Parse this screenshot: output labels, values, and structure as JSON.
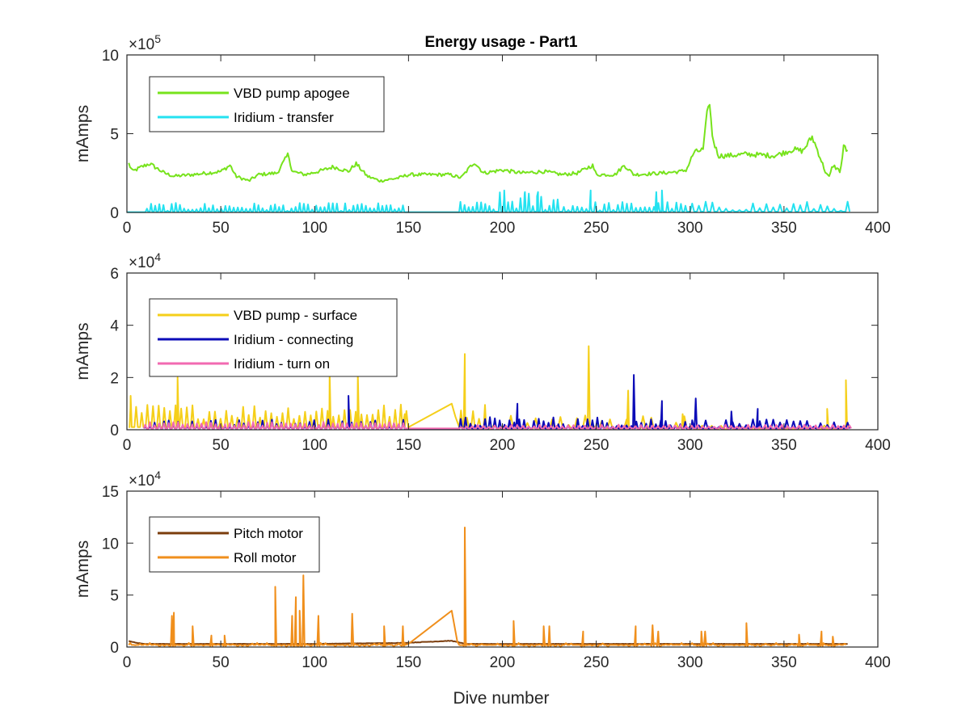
{
  "title": "Energy usage - Part1",
  "xlabel": "Dive number",
  "chart_data": [
    {
      "type": "line",
      "ylabel": "mAmps",
      "exponent_label": "×10",
      "exponent_power": "5",
      "scale": 100000,
      "xlim": [
        0,
        400
      ],
      "ylim": [
        0,
        10
      ],
      "xticks": [
        "0",
        "50",
        "100",
        "150",
        "200",
        "250",
        "300",
        "350",
        "400"
      ],
      "yticks": [
        "0",
        "5",
        "10"
      ],
      "legend_placement": "top-left",
      "series": [
        {
          "name": "VBD pump apogee",
          "color": "#77e31c",
          "style": "noisy",
          "anchors": [
            [
              1,
              3.1
            ],
            [
              3,
              2.6
            ],
            [
              8,
              2.9
            ],
            [
              12,
              3.1
            ],
            [
              20,
              2.5
            ],
            [
              25,
              2.3
            ],
            [
              35,
              2.4
            ],
            [
              50,
              2.6
            ],
            [
              55,
              3.0
            ],
            [
              58,
              2.3
            ],
            [
              65,
              2.0
            ],
            [
              70,
              2.4
            ],
            [
              80,
              2.5
            ],
            [
              86,
              3.7
            ],
            [
              88,
              2.6
            ],
            [
              95,
              2.4
            ],
            [
              105,
              2.7
            ],
            [
              110,
              2.9
            ],
            [
              118,
              2.6
            ],
            [
              122,
              3.1
            ],
            [
              128,
              2.3
            ],
            [
              135,
              2.0
            ],
            [
              145,
              2.2
            ],
            [
              150,
              2.4
            ],
            [
              165,
              2.4
            ],
            [
              172,
              2.4
            ],
            [
              178,
              2.2
            ],
            [
              185,
              3.2
            ],
            [
              190,
              2.5
            ],
            [
              195,
              2.6
            ],
            [
              200,
              2.7
            ],
            [
              210,
              2.5
            ],
            [
              222,
              2.6
            ],
            [
              232,
              2.4
            ],
            [
              240,
              2.5
            ],
            [
              248,
              3.0
            ],
            [
              250,
              2.4
            ],
            [
              260,
              2.4
            ],
            [
              265,
              3.0
            ],
            [
              270,
              2.4
            ],
            [
              285,
              2.5
            ],
            [
              295,
              2.6
            ],
            [
              298,
              2.7
            ],
            [
              302,
              3.8
            ],
            [
              307,
              4.0
            ],
            [
              310,
              7.3
            ],
            [
              312,
              4.7
            ],
            [
              315,
              3.6
            ],
            [
              320,
              3.6
            ],
            [
              330,
              3.7
            ],
            [
              345,
              3.6
            ],
            [
              355,
              4.0
            ],
            [
              360,
              3.9
            ],
            [
              365,
              4.8
            ],
            [
              368,
              3.9
            ],
            [
              372,
              2.6
            ],
            [
              374,
              2.2
            ],
            [
              376,
              3.0
            ],
            [
              380,
              2.6
            ],
            [
              382,
              4.3
            ],
            [
              384,
              3.8
            ]
          ]
        },
        {
          "name": "Iridium - transfer",
          "color": "#24e2f0",
          "style": "spikes",
          "segments": [
            {
              "from": 10,
              "to": 148,
              "step": 2.2,
              "low": 0.1,
              "high": 0.6,
              "base": 0.05
            },
            {
              "from": 177,
              "to": 195,
              "step": 2.2,
              "low": 0.1,
              "high": 0.7,
              "base": 0.05
            },
            {
              "from": 198,
              "to": 230,
              "step": 2.2,
              "low": 0.1,
              "high": 1.3,
              "base": 0.05
            },
            {
              "from": 232,
              "to": 298,
              "step": 2.4,
              "low": 0.1,
              "high": 0.7,
              "base": 0.05
            },
            {
              "from": 300,
              "to": 384,
              "step": 3.6,
              "low": 0.1,
              "high": 0.7,
              "base": 0.05
            }
          ],
          "peaks": [
            [
              201,
              1.4
            ],
            [
              212,
              1.3
            ],
            [
              219,
              1.3
            ],
            [
              247,
              1.4
            ],
            [
              282,
              1.3
            ],
            [
              285,
              1.4
            ]
          ],
          "flat": [
            [
              0,
              0.02
            ],
            [
              10,
              0.02
            ],
            [
              148,
              0.02
            ],
            [
              177,
              0.02
            ]
          ]
        }
      ]
    },
    {
      "type": "line",
      "ylabel": "mAmps",
      "exponent_label": "×10",
      "exponent_power": "4",
      "scale": 10000,
      "xlim": [
        0,
        400
      ],
      "ylim": [
        0,
        6
      ],
      "xticks": [
        "0",
        "50",
        "100",
        "150",
        "200",
        "250",
        "300",
        "350",
        "400"
      ],
      "yticks": [
        "0",
        "2",
        "4",
        "6"
      ],
      "legend_placement": "top-left",
      "series": [
        {
          "name": "VBD pump - surface",
          "color": "#f5cf1a",
          "style": "spikes",
          "segments": [
            {
              "from": 1,
              "to": 148,
              "step": 3.0,
              "low": 0.4,
              "high": 1.0,
              "base": 0.1
            },
            {
              "from": 177,
              "to": 190,
              "step": 3.2,
              "low": 0.4,
              "high": 1.0,
              "base": 0.1
            },
            {
              "from": 190,
              "to": 300,
              "step": 4.4,
              "low": 0.1,
              "high": 0.6,
              "base": 0.05
            },
            {
              "from": 300,
              "to": 384,
              "step": 5.0,
              "low": 0.05,
              "high": 0.2,
              "base": 0.02
            }
          ],
          "peaks": [
            [
              2,
              1.3
            ],
            [
              27,
              2.0
            ],
            [
              108,
              2.2
            ],
            [
              123,
              2.1
            ],
            [
              180,
              2.9
            ],
            [
              246,
              3.2
            ],
            [
              267,
              1.5
            ],
            [
              296,
              0.6
            ],
            [
              373,
              0.8
            ],
            [
              383,
              1.9
            ]
          ],
          "bridge": [
            [
              148,
              0.6
            ],
            [
              150,
              0.1
            ],
            [
              173,
              1.0
            ],
            [
              175,
              0.5
            ]
          ]
        },
        {
          "name": "Iridium - connecting",
          "color": "#0c0cb8",
          "style": "spikes",
          "segments": [
            {
              "from": 9,
              "to": 148,
              "step": 2.5,
              "low": 0.1,
              "high": 0.4,
              "base": 0.05
            },
            {
              "from": 177,
              "to": 300,
              "step": 2.6,
              "low": 0.1,
              "high": 0.5,
              "base": 0.05
            },
            {
              "from": 300,
              "to": 384,
              "step": 3.6,
              "low": 0.1,
              "high": 0.4,
              "base": 0.05
            }
          ],
          "peaks": [
            [
              118,
              1.3
            ],
            [
              208,
              1.0
            ],
            [
              270,
              2.1
            ],
            [
              285,
              1.1
            ],
            [
              303,
              1.2
            ],
            [
              322,
              0.7
            ],
            [
              336,
              0.8
            ]
          ],
          "flat": [
            [
              148,
              0.02
            ],
            [
              177,
              0.02
            ]
          ]
        },
        {
          "name": "Iridium - turn on",
          "color": "#f26ab1",
          "style": "spikes",
          "segments": [
            {
              "from": 9,
              "to": 148,
              "step": 2.5,
              "low": 0.15,
              "high": 0.3,
              "base": 0.05
            },
            {
              "from": 177,
              "to": 384,
              "step": 3.0,
              "low": 0.1,
              "high": 0.2,
              "base": 0.05
            }
          ],
          "flat": [
            [
              148,
              0.05
            ],
            [
              177,
              0.05
            ]
          ]
        }
      ]
    },
    {
      "type": "line",
      "ylabel": "mAmps",
      "exponent_label": "×10",
      "exponent_power": "4",
      "scale": 10000,
      "xlim": [
        0,
        400
      ],
      "ylim": [
        0,
        15
      ],
      "xticks": [
        "0",
        "50",
        "100",
        "150",
        "200",
        "250",
        "300",
        "350",
        "400"
      ],
      "yticks": [
        "0",
        "5",
        "10",
        "15"
      ],
      "legend_placement": "top-left",
      "series": [
        {
          "name": "Pitch motor",
          "color": "#7b3d0c",
          "style": "noisy",
          "anchors": [
            [
              1,
              0.6
            ],
            [
              5,
              0.4
            ],
            [
              10,
              0.3
            ],
            [
              50,
              0.3
            ],
            [
              100,
              0.3
            ],
            [
              148,
              0.4
            ],
            [
              160,
              0.5
            ],
            [
              172,
              0.6
            ],
            [
              176,
              0.5
            ],
            [
              180,
              0.3
            ],
            [
              250,
              0.3
            ],
            [
              300,
              0.3
            ],
            [
              384,
              0.3
            ]
          ]
        },
        {
          "name": "Roll motor",
          "color": "#f08f1c",
          "style": "spikes",
          "segments": [
            {
              "from": 1,
              "to": 148,
              "step": 2.6,
              "low": 0.0,
              "high": 0.4,
              "base": 0.2
            },
            {
              "from": 177,
              "to": 384,
              "step": 2.8,
              "low": 0.0,
              "high": 0.4,
              "base": 0.2
            }
          ],
          "peaks": [
            [
              24,
              3.0
            ],
            [
              25,
              3.3
            ],
            [
              35,
              2.0
            ],
            [
              45,
              1.1
            ],
            [
              52,
              1.1
            ],
            [
              79,
              5.8
            ],
            [
              88,
              3.0
            ],
            [
              90,
              4.8
            ],
            [
              92,
              3.5
            ],
            [
              94,
              6.9
            ],
            [
              102,
              3.0
            ],
            [
              120,
              3.2
            ],
            [
              137,
              2.0
            ],
            [
              147,
              2.0
            ],
            [
              180,
              11.5
            ],
            [
              206,
              2.5
            ],
            [
              222,
              2.0
            ],
            [
              225,
              2.0
            ],
            [
              243,
              1.5
            ],
            [
              271,
              2.0
            ],
            [
              280,
              2.1
            ],
            [
              283,
              1.5
            ],
            [
              306,
              1.5
            ],
            [
              308,
              1.5
            ],
            [
              330,
              2.3
            ],
            [
              358,
              1.2
            ],
            [
              370,
              1.5
            ],
            [
              376,
              1.0
            ]
          ],
          "bridge": [
            [
              148,
              0.4
            ],
            [
              150,
              0.3
            ],
            [
              173,
              3.5
            ],
            [
              176,
              0.5
            ]
          ]
        }
      ]
    }
  ]
}
